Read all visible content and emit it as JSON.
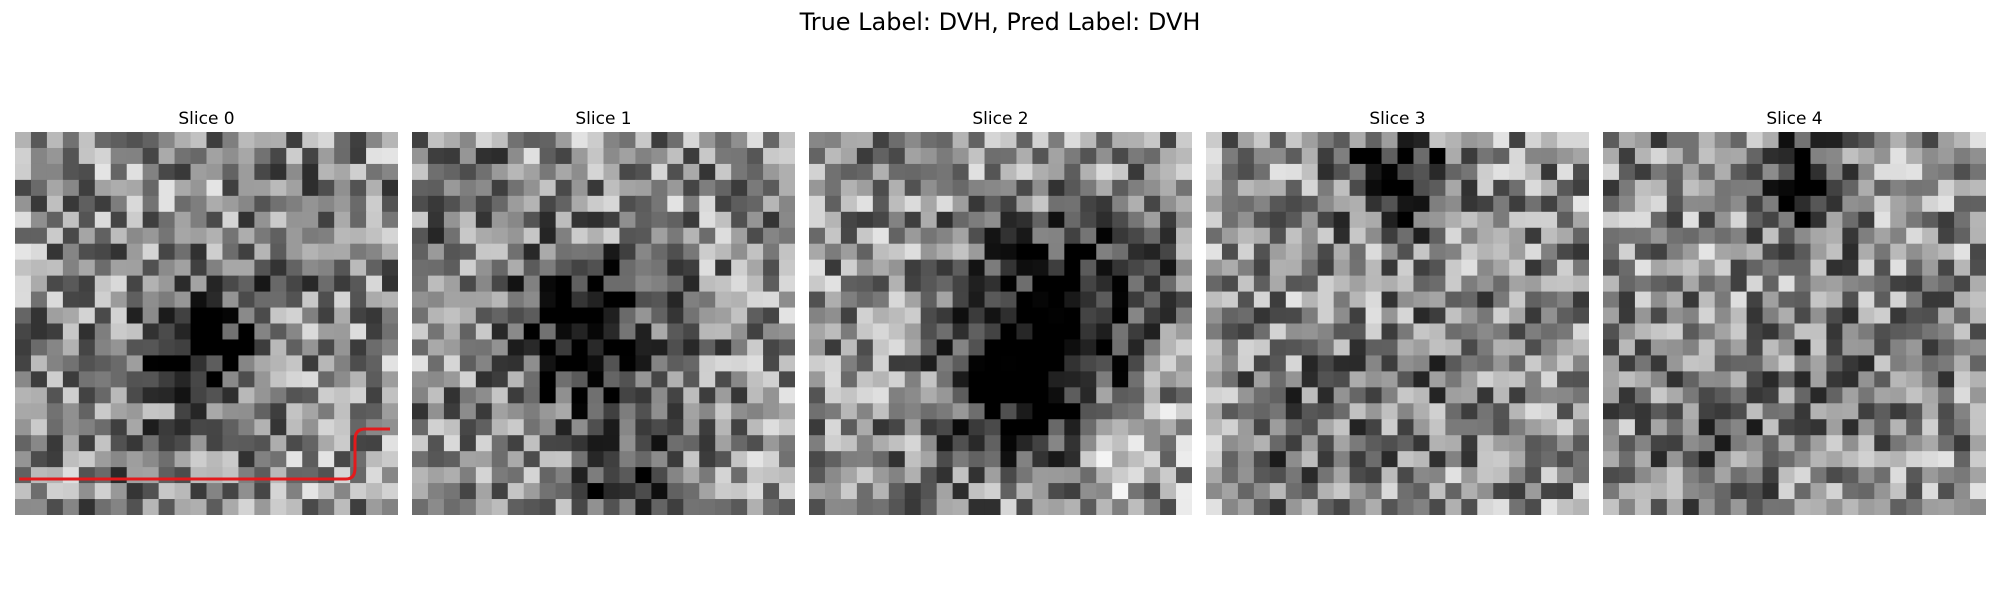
{
  "figure": {
    "title": "True Label: DVH, Pred Label: DVH"
  },
  "slices": [
    {
      "label": "Slice 0",
      "overlay": "red-contour"
    },
    {
      "label": "Slice 1"
    },
    {
      "label": "Slice 2"
    },
    {
      "label": "Slice 3"
    },
    {
      "label": "Slice 4"
    }
  ],
  "colors": {
    "contour": "#e31a1c",
    "background": "#ffffff"
  }
}
